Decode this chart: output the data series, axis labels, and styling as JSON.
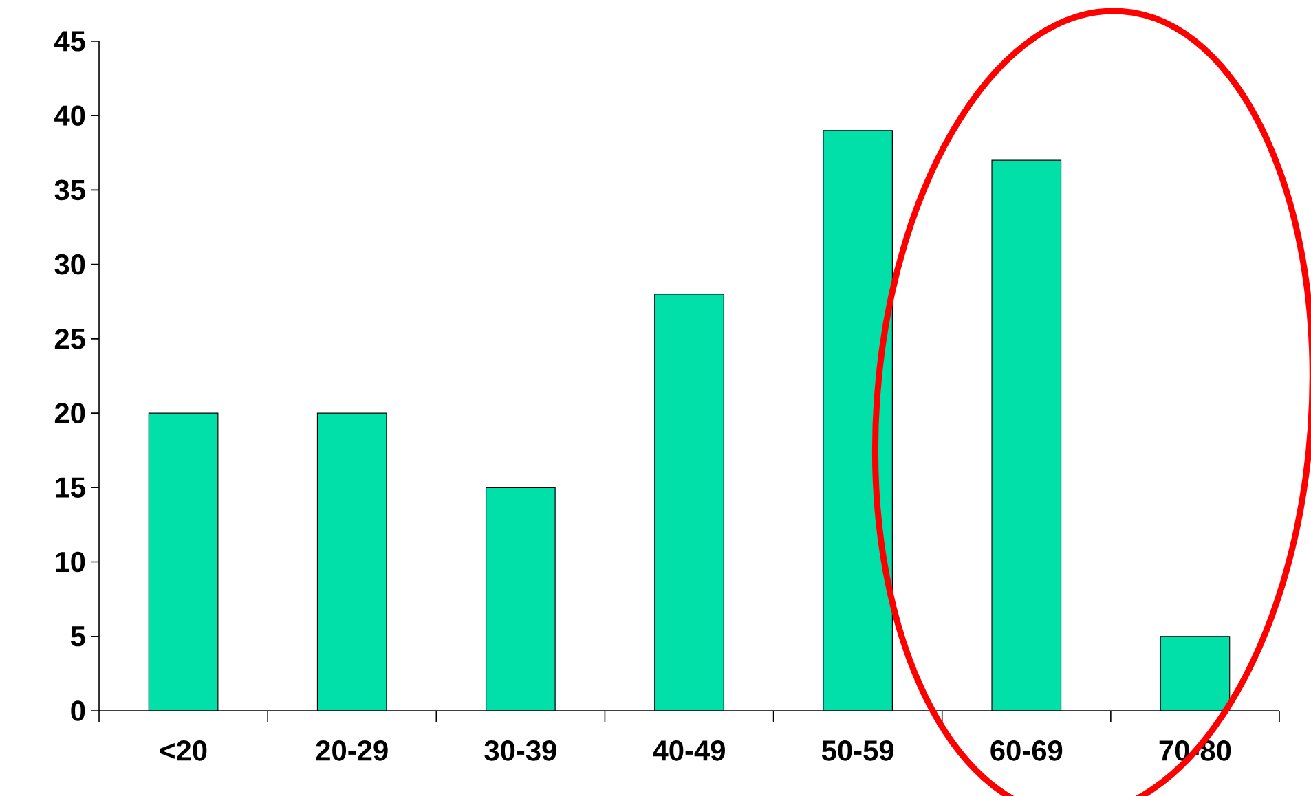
{
  "chart_data": {
    "type": "bar",
    "categories": [
      "<20",
      "20-29",
      "30-39",
      "40-49",
      "50-59",
      "60-69",
      "70-80"
    ],
    "values": [
      20,
      20,
      15,
      28,
      39,
      37,
      5
    ],
    "color": "#00e0a8",
    "ylim": [
      0,
      45
    ],
    "yticks": [
      0,
      5,
      10,
      15,
      20,
      25,
      30,
      35,
      40,
      45
    ],
    "grid": false
  }
}
